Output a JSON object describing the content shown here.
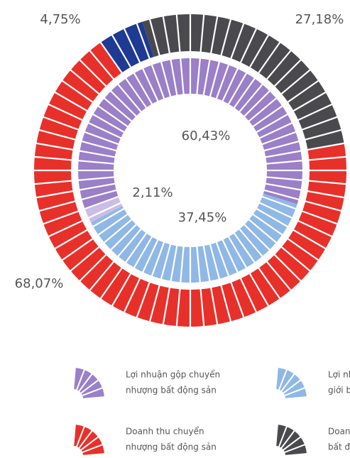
{
  "chart_data": [
    {
      "type": "pie",
      "categories": [
        [
          "Doanh thu chuyển",
          "nhượng bất động sản"
        ],
        null,
        [
          "Doanh",
          "bất độ"
        ]
      ],
      "values": [
        68.07,
        4.75,
        27.18
      ],
      "value_labels": [
        "68,07%",
        "4,75%",
        "27,18%"
      ],
      "colors": [
        "#e8302a",
        "#1f3a93",
        "#4a4a4e"
      ]
    },
    {
      "type": "pie",
      "categories": [
        [
          "Lợi nhuận gộp chuyển",
          "nhượng bất động sản"
        ],
        [
          "Lợi nhu",
          "giới bấ"
        ],
        null
      ],
      "values": [
        60.43,
        37.45,
        2.11
      ],
      "value_labels": [
        "60,43%",
        "37,45%",
        "2,11%"
      ],
      "colors": [
        "#9b7fc8",
        "#8fb8e6",
        "#cbbde6"
      ]
    }
  ]
}
